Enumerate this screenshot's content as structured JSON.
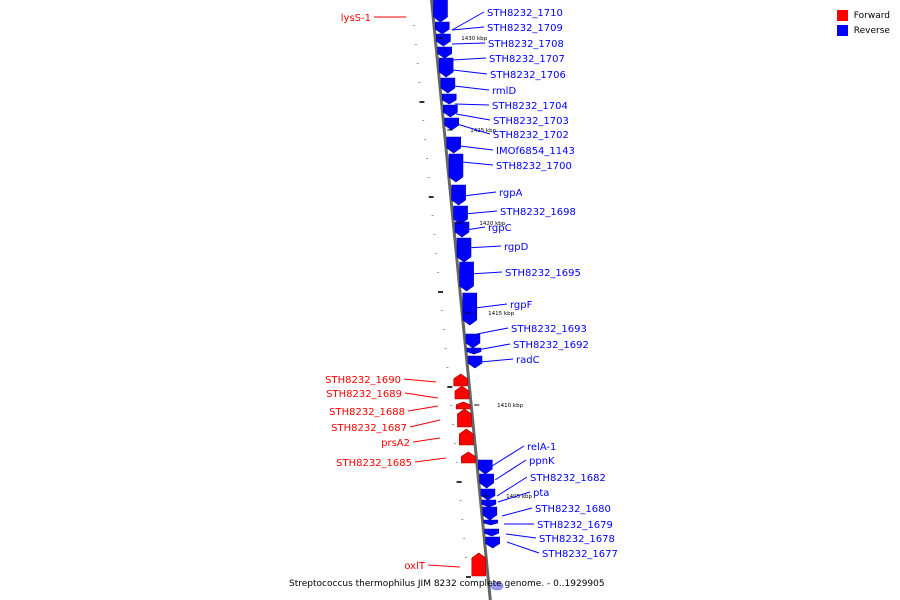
{
  "legend": {
    "forward_label": "Forward",
    "reverse_label": "Reverse",
    "forward_color": "#ff0000",
    "reverse_color": "#0000ff"
  },
  "caption": "Streptococcus thermophilus JIM 8232 complete genome. - 0..1929905",
  "chart_data": {
    "type": "genome-map",
    "axis_ticks": [
      "1430 kbp",
      "1425 kbp",
      "1420 kbp",
      "1415 kbp",
      "1410 kbp",
      "1405 kbp"
    ],
    "reverse_genes": [
      "STH8232_1710",
      "STH8232_1709",
      "STH8232_1708",
      "STH8232_1707",
      "STH8232_1706",
      "rmlD",
      "STH8232_1704",
      "STH8232_1703",
      "STH8232_1702",
      "IMOf6854_1143",
      "STH8232_1700",
      "rgpA",
      "STH8232_1698",
      "rgpC",
      "rgpD",
      "STH8232_1695",
      "rgpF",
      "STH8232_1693",
      "STH8232_1692",
      "radC",
      "relA-1",
      "ppnK",
      "STH8232_1682",
      "pta",
      "STH8232_1680",
      "STH8232_1679",
      "STH8232_1678",
      "STH8232_1677"
    ],
    "forward_genes": [
      "lysS-1",
      "STH8232_1690",
      "STH8232_1689",
      "STH8232_1688",
      "STH8232_1687",
      "prsA2",
      "STH8232_1685",
      "oxlT"
    ]
  }
}
